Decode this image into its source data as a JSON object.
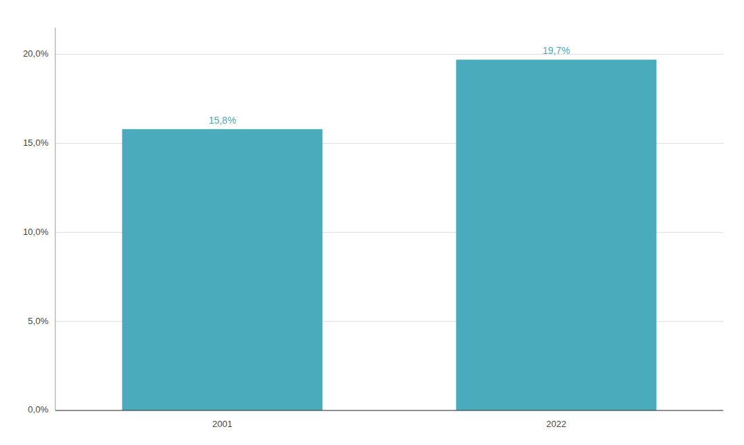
{
  "chart_data": {
    "type": "bar",
    "categories": [
      "2001",
      "2022"
    ],
    "values": [
      15.8,
      19.7
    ],
    "value_labels": [
      "15,8%",
      "19,7%"
    ],
    "color": "#4AABBC",
    "ylim": [
      0,
      21.5
    ],
    "yticks": [
      {
        "value": 0.0,
        "label": "0,0%"
      },
      {
        "value": 5.0,
        "label": "5,0%"
      },
      {
        "value": 10.0,
        "label": "10,0%"
      },
      {
        "value": 15.0,
        "label": "15,0%"
      },
      {
        "value": 20.0,
        "label": "20,0%"
      }
    ],
    "grid": true,
    "data_labels": true
  }
}
